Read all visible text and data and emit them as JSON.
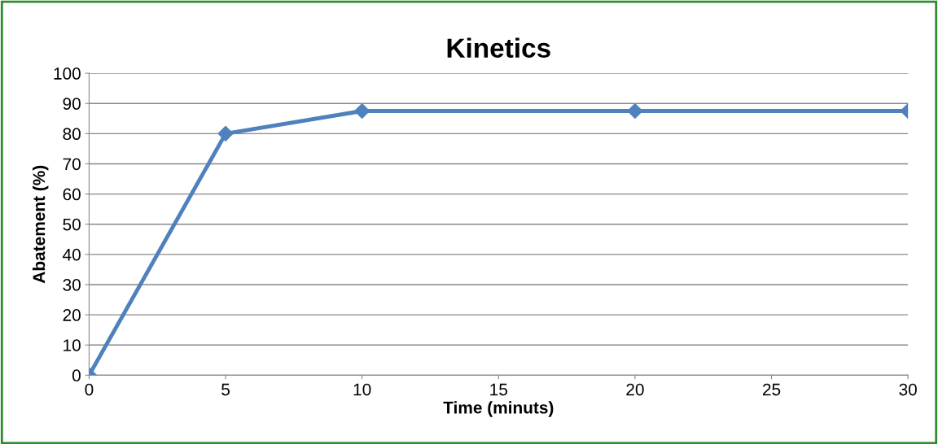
{
  "chart_data": {
    "type": "line",
    "title": "Kinetics",
    "xlabel": "Time (minuts)",
    "ylabel": "Abatement (%)",
    "x": [
      0,
      5,
      10,
      20,
      30
    ],
    "series": [
      {
        "color": "#4f81bd",
        "values": [
          0,
          80,
          87.5,
          87.5,
          87.5
        ]
      }
    ],
    "xlim": [
      0,
      30
    ],
    "xticks": [
      0,
      5,
      10,
      15,
      20,
      25,
      30
    ],
    "ylim": [
      0,
      100
    ],
    "yticks": [
      0,
      10,
      20,
      30,
      40,
      50,
      60,
      70,
      80,
      90,
      100
    ],
    "grid": "y",
    "marker": "diamond",
    "line_style": "solid"
  }
}
